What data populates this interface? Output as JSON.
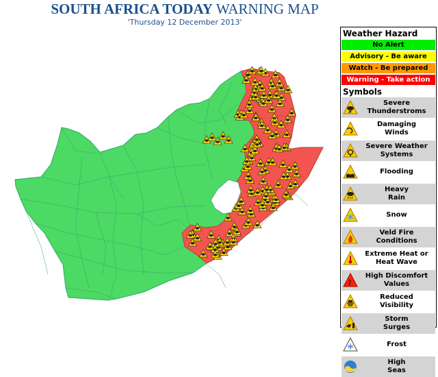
{
  "title": {
    "bold": "SOUTH AFRICA TODAY",
    "normal": "WARNING MAP"
  },
  "date": "'Thursday 12 December 2013'",
  "legend": {
    "hazard_header": "Weather Hazard",
    "hazards": [
      {
        "label": "No Alert",
        "color": "#00ee00",
        "text_color": "#000000"
      },
      {
        "label": "Advisory - Be aware",
        "color": "#ffff00",
        "text_color": "#000000"
      },
      {
        "label": "Watch - Be prepared",
        "color": "#ff9900",
        "text_color": "#000000"
      },
      {
        "label": "Warning - Take action",
        "color": "#ff0000",
        "text_color": "#ffffff"
      }
    ],
    "symbols_header": "Symbols",
    "symbols": [
      {
        "l1": "Severe",
        "l2": "Thunderstroms",
        "icon": "thunderstorm-icon"
      },
      {
        "l1": "Damaging",
        "l2": "Winds",
        "icon": "wind-icon"
      },
      {
        "l1": "Severe Weather",
        "l2": "Systems",
        "icon": "weather-system-icon"
      },
      {
        "l1": "Flooding",
        "l2": "",
        "icon": "flood-icon"
      },
      {
        "l1": "Heavy",
        "l2": "Rain",
        "icon": "rain-icon"
      },
      {
        "l1": "Snow",
        "l2": "",
        "icon": "snow-icon"
      },
      {
        "l1": "Veld Fire",
        "l2": "Conditions",
        "icon": "fire-icon"
      },
      {
        "l1": "Extreme Heat or",
        "l2": "Heat Wave",
        "icon": "heat-icon"
      },
      {
        "l1": "High Discomfort",
        "l2": "Values",
        "icon": "discomfort-icon"
      },
      {
        "l1": "Reduced",
        "l2": "Visibility",
        "icon": "visibility-icon"
      },
      {
        "l1": "Storm",
        "l2": "Surges",
        "icon": "storm-surge-icon"
      },
      {
        "l1": "Frost",
        "l2": "",
        "icon": "frost-icon"
      },
      {
        "l1": "High",
        "l2": "Seas",
        "icon": "high-seas-icon"
      }
    ]
  },
  "map": {
    "no_alert_color": "#4cd964",
    "warning_color": "#f2544f",
    "boundary_color": "#2f9e6e",
    "lesotho_color": "#ffffff"
  }
}
